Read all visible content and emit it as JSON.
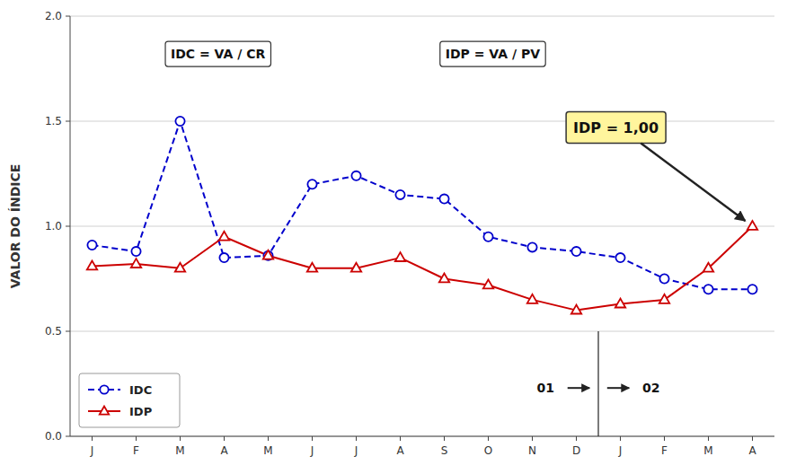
{
  "chart_data": {
    "type": "line",
    "categories": [
      "J",
      "F",
      "M",
      "A",
      "M",
      "J",
      "J",
      "A",
      "S",
      "O",
      "N",
      "D",
      "J",
      "F",
      "M",
      "A"
    ],
    "series": [
      {
        "name": "IDC",
        "color": "#0000cc",
        "line_style": "dashed",
        "marker": "circle",
        "values": [
          0.91,
          0.88,
          1.5,
          0.85,
          0.86,
          1.2,
          1.24,
          1.15,
          1.13,
          0.95,
          0.9,
          0.88,
          0.85,
          0.75,
          0.7,
          0.7
        ]
      },
      {
        "name": "IDP",
        "color": "#cc0000",
        "line_style": "solid",
        "marker": "triangle",
        "values": [
          0.81,
          0.82,
          0.8,
          0.95,
          0.86,
          0.8,
          0.8,
          0.85,
          0.75,
          0.72,
          0.65,
          0.6,
          0.63,
          0.65,
          0.8,
          1.0
        ]
      }
    ],
    "y_label": "VALOR DO ÍNDICE",
    "ylim": [
      0.0,
      2.0
    ],
    "yticks": [
      {
        "value": 0.0,
        "label": "0.0"
      },
      0.5,
      {
        "value": 1.0,
        "label": "1.0"
      },
      1.5,
      {
        "value": 2.0,
        "label": "2.0"
      }
    ],
    "grid": true,
    "legend": "lower left",
    "annotations": [
      "IDC = VA / CR",
      "IDP = VA / PV",
      "IDP = 1,00",
      "01",
      "02"
    ]
  }
}
